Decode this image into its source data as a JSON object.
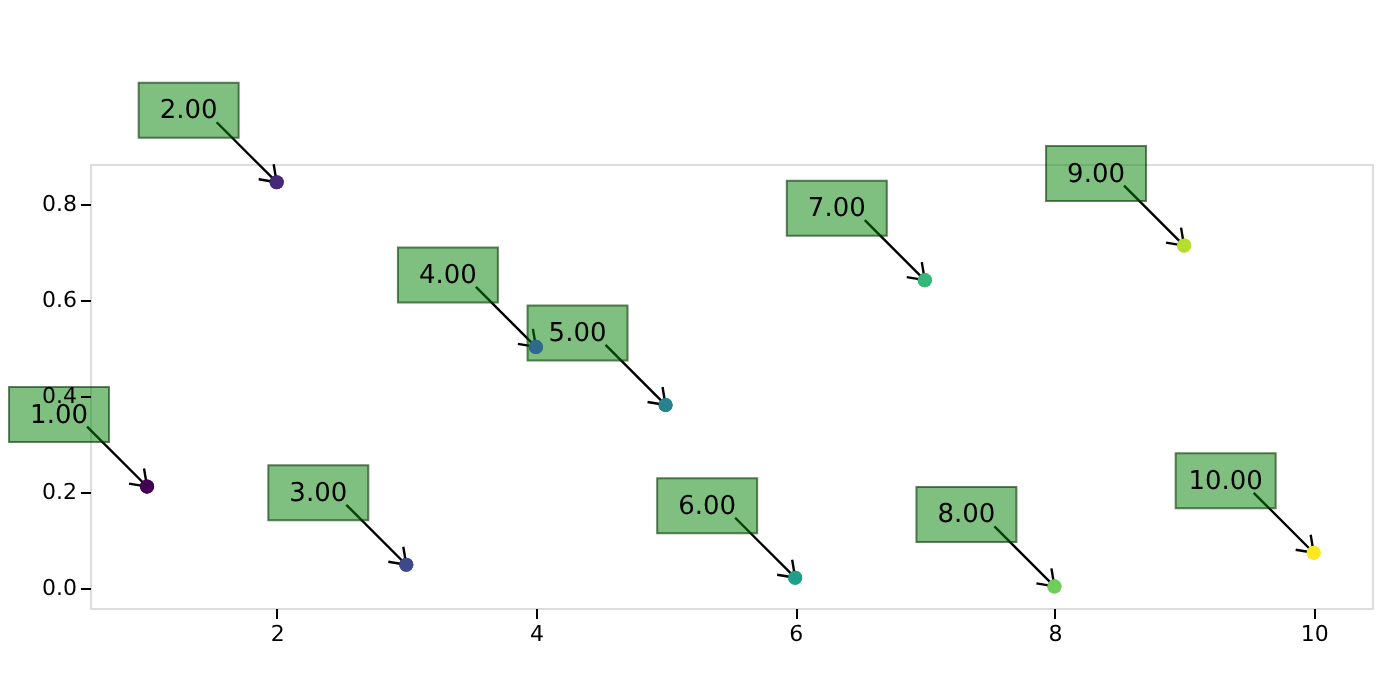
{
  "chart_data": {
    "type": "scatter",
    "x": [
      1,
      2,
      3,
      4,
      5,
      6,
      7,
      8,
      9,
      10
    ],
    "values": [
      0.211,
      0.845,
      0.048,
      0.502,
      0.381,
      0.021,
      0.641,
      0.003,
      0.713,
      0.073
    ],
    "colors": [
      "#440154",
      "#482878",
      "#3e4989",
      "#31688e",
      "#26828e",
      "#1f9e89",
      "#35b779",
      "#6ece58",
      "#b5de2b",
      "#fde725"
    ],
    "marker": "circle",
    "xlim": [
      0.56,
      10.45
    ],
    "ylim": [
      -0.042,
      0.883
    ],
    "xticks": [
      2,
      4,
      6,
      8,
      10
    ],
    "yticks": [
      {
        "value": 0,
        "label": "0.0"
      },
      {
        "value": 0.2,
        "label": "0.2"
      },
      {
        "value": 0.4,
        "label": "0.4"
      },
      {
        "value": 0.6,
        "label": "0.6"
      },
      {
        "value": 0.8,
        "label": "0.8"
      }
    ],
    "grid": false,
    "legend": false,
    "annotations": [
      {
        "text": "1.00",
        "x": 1,
        "y": 0.211
      },
      {
        "text": "2.00",
        "x": 2,
        "y": 0.845
      },
      {
        "text": "3.00",
        "x": 3,
        "y": 0.048
      },
      {
        "text": "4.00",
        "x": 4,
        "y": 0.502
      },
      {
        "text": "5.00",
        "x": 5,
        "y": 0.381
      },
      {
        "text": "6.00",
        "x": 6,
        "y": 0.021
      },
      {
        "text": "7.00",
        "x": 7,
        "y": 0.641
      },
      {
        "text": "8.00",
        "x": 8,
        "y": 0.003
      },
      {
        "text": "9.00",
        "x": 9,
        "y": 0.713
      },
      {
        "text": "10.00",
        "x": 10,
        "y": 0.073
      }
    ]
  }
}
